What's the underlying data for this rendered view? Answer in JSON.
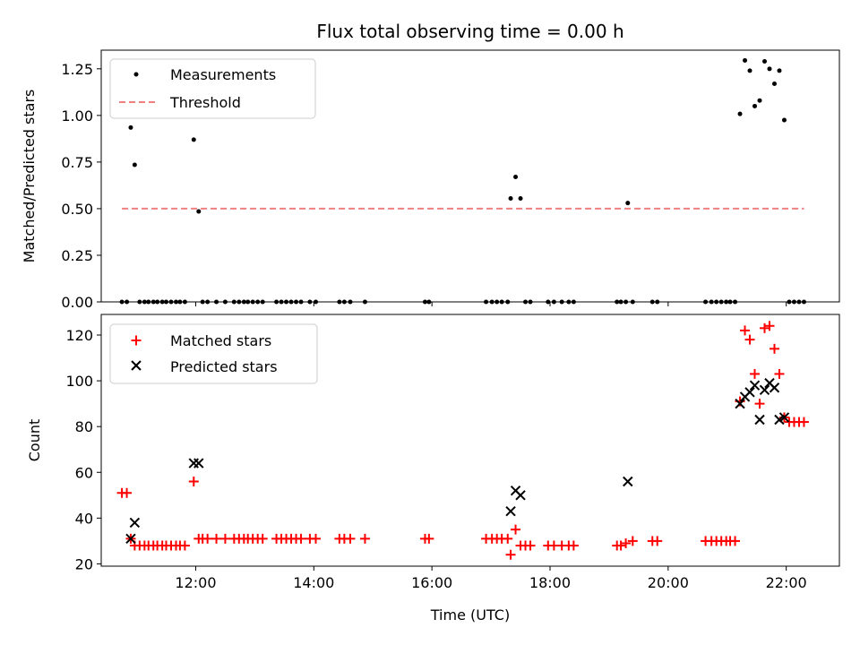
{
  "chart_data": [
    {
      "type": "scatter",
      "title": "Flux total observing time = 0.00 h",
      "xlabel": "",
      "ylabel": "Matched/Predicted stars",
      "xlim": [
        "10:24",
        "22:54"
      ],
      "ylim": [
        0,
        1.35
      ],
      "yticks": [
        "0.00",
        "0.25",
        "0.50",
        "0.75",
        "1.00",
        "1.25"
      ],
      "legend_position": "top-left",
      "series": [
        {
          "name": "Measurements",
          "marker": "dot",
          "color": "#000000",
          "points": [
            [
              "10:45",
              0
            ],
            [
              "10:50",
              0
            ],
            [
              "10:54",
              0.935
            ],
            [
              "10:58",
              0.735
            ],
            [
              "11:03",
              0
            ],
            [
              "11:08",
              0
            ],
            [
              "11:12",
              0
            ],
            [
              "11:17",
              0
            ],
            [
              "11:21",
              0
            ],
            [
              "11:26",
              0
            ],
            [
              "11:30",
              0
            ],
            [
              "11:35",
              0
            ],
            [
              "11:40",
              0
            ],
            [
              "11:44",
              0
            ],
            [
              "11:49",
              0
            ],
            [
              "11:58",
              0.87
            ],
            [
              "12:03",
              0.485
            ],
            [
              "12:07",
              0
            ],
            [
              "12:12",
              0
            ],
            [
              "12:21",
              0
            ],
            [
              "12:30",
              0
            ],
            [
              "12:39",
              0
            ],
            [
              "12:44",
              0
            ],
            [
              "12:49",
              0
            ],
            [
              "12:53",
              0
            ],
            [
              "12:58",
              0
            ],
            [
              "13:03",
              0
            ],
            [
              "13:08",
              0
            ],
            [
              "13:22",
              0
            ],
            [
              "13:27",
              0
            ],
            [
              "13:32",
              0
            ],
            [
              "13:37",
              0
            ],
            [
              "13:42",
              0
            ],
            [
              "13:47",
              0
            ],
            [
              "13:56",
              0
            ],
            [
              "14:02",
              0
            ],
            [
              "14:26",
              0
            ],
            [
              "14:31",
              0
            ],
            [
              "14:37",
              0
            ],
            [
              "14:52",
              0
            ],
            [
              "15:53",
              0
            ],
            [
              "15:57",
              0
            ],
            [
              "16:55",
              0
            ],
            [
              "17:01",
              0
            ],
            [
              "17:06",
              0
            ],
            [
              "17:11",
              0
            ],
            [
              "17:17",
              0
            ],
            [
              "17:20",
              0.555
            ],
            [
              "17:25",
              0.67
            ],
            [
              "17:30",
              0.555
            ],
            [
              "17:35",
              0
            ],
            [
              "17:40",
              0
            ],
            [
              "17:58",
              0
            ],
            [
              "18:04",
              0
            ],
            [
              "18:12",
              0
            ],
            [
              "18:19",
              0
            ],
            [
              "18:24",
              0
            ],
            [
              "19:08",
              0
            ],
            [
              "19:12",
              0
            ],
            [
              "19:17",
              0
            ],
            [
              "19:19",
              0.53
            ],
            [
              "19:24",
              0
            ],
            [
              "19:44",
              0
            ],
            [
              "19:49",
              0
            ],
            [
              "20:38",
              0
            ],
            [
              "20:44",
              0
            ],
            [
              "20:49",
              0
            ],
            [
              "20:54",
              0
            ],
            [
              "20:59",
              0
            ],
            [
              "21:03",
              0
            ],
            [
              "21:08",
              0
            ],
            [
              "21:13",
              1.008
            ],
            [
              "21:18",
              1.295
            ],
            [
              "21:23",
              1.24
            ],
            [
              "21:28",
              1.05
            ],
            [
              "21:33",
              1.08
            ],
            [
              "21:38",
              1.29
            ],
            [
              "21:43",
              1.25
            ],
            [
              "21:48",
              1.17
            ],
            [
              "21:53",
              1.24
            ],
            [
              "21:58",
              0.975
            ],
            [
              "22:03",
              0
            ],
            [
              "22:08",
              0
            ],
            [
              "22:13",
              0
            ],
            [
              "22:18",
              0
            ]
          ]
        },
        {
          "name": "Threshold",
          "marker": "dashed-line",
          "color": "#f08080",
          "points": [
            [
              "10:45",
              0.5
            ],
            [
              "22:18",
              0.5
            ]
          ]
        }
      ]
    },
    {
      "type": "scatter",
      "title": "",
      "xlabel": "Time (UTC)",
      "ylabel": "Count",
      "xlim": [
        "10:24",
        "22:54"
      ],
      "ylim": [
        19,
        129
      ],
      "yticks": [
        "20",
        "40",
        "60",
        "80",
        "100",
        "120"
      ],
      "xticks": [
        "12:00",
        "14:00",
        "16:00",
        "18:00",
        "20:00",
        "22:00"
      ],
      "legend_position": "top-left",
      "series": [
        {
          "name": "Matched stars",
          "marker": "plus",
          "color": "#ff0000",
          "points": [
            [
              "10:45",
              51
            ],
            [
              "10:50",
              51
            ],
            [
              "10:54",
              31
            ],
            [
              "10:58",
              28
            ],
            [
              "11:03",
              28
            ],
            [
              "11:08",
              28
            ],
            [
              "11:12",
              28
            ],
            [
              "11:17",
              28
            ],
            [
              "11:21",
              28
            ],
            [
              "11:26",
              28
            ],
            [
              "11:30",
              28
            ],
            [
              "11:35",
              28
            ],
            [
              "11:40",
              28
            ],
            [
              "11:44",
              28
            ],
            [
              "11:49",
              28
            ],
            [
              "11:58",
              56
            ],
            [
              "12:03",
              31
            ],
            [
              "12:07",
              31
            ],
            [
              "12:12",
              31
            ],
            [
              "12:21",
              31
            ],
            [
              "12:30",
              31
            ],
            [
              "12:39",
              31
            ],
            [
              "12:44",
              31
            ],
            [
              "12:49",
              31
            ],
            [
              "12:53",
              31
            ],
            [
              "12:58",
              31
            ],
            [
              "13:03",
              31
            ],
            [
              "13:08",
              31
            ],
            [
              "13:22",
              31
            ],
            [
              "13:27",
              31
            ],
            [
              "13:32",
              31
            ],
            [
              "13:37",
              31
            ],
            [
              "13:42",
              31
            ],
            [
              "13:47",
              31
            ],
            [
              "13:56",
              31
            ],
            [
              "14:02",
              31
            ],
            [
              "14:26",
              31
            ],
            [
              "14:31",
              31
            ],
            [
              "14:37",
              31
            ],
            [
              "14:52",
              31
            ],
            [
              "15:53",
              31
            ],
            [
              "15:57",
              31
            ],
            [
              "16:55",
              31
            ],
            [
              "17:01",
              31
            ],
            [
              "17:06",
              31
            ],
            [
              "17:11",
              31
            ],
            [
              "17:17",
              31
            ],
            [
              "17:20",
              24
            ],
            [
              "17:25",
              35
            ],
            [
              "17:30",
              28
            ],
            [
              "17:35",
              28
            ],
            [
              "17:40",
              28
            ],
            [
              "17:58",
              28
            ],
            [
              "18:04",
              28
            ],
            [
              "18:12",
              28
            ],
            [
              "18:19",
              28
            ],
            [
              "18:24",
              28
            ],
            [
              "19:08",
              28
            ],
            [
              "19:12",
              28
            ],
            [
              "19:17",
              29
            ],
            [
              "19:24",
              30
            ],
            [
              "19:44",
              30
            ],
            [
              "19:49",
              30
            ],
            [
              "20:38",
              30
            ],
            [
              "20:44",
              30
            ],
            [
              "20:49",
              30
            ],
            [
              "20:54",
              30
            ],
            [
              "20:59",
              30
            ],
            [
              "21:03",
              30
            ],
            [
              "21:08",
              30
            ],
            [
              "21:13",
              91
            ],
            [
              "21:18",
              122
            ],
            [
              "21:23",
              118
            ],
            [
              "21:28",
              103
            ],
            [
              "21:33",
              90
            ],
            [
              "21:38",
              123
            ],
            [
              "21:43",
              124
            ],
            [
              "21:48",
              114
            ],
            [
              "21:53",
              103
            ],
            [
              "21:58",
              84
            ],
            [
              "22:03",
              82
            ],
            [
              "22:08",
              82
            ],
            [
              "22:13",
              82
            ],
            [
              "22:18",
              82
            ]
          ]
        },
        {
          "name": "Predicted stars",
          "marker": "x",
          "color": "#000000",
          "points": [
            [
              "10:54",
              31
            ],
            [
              "10:58",
              38
            ],
            [
              "11:58",
              64
            ],
            [
              "12:03",
              64
            ],
            [
              "17:20",
              43
            ],
            [
              "17:25",
              52
            ],
            [
              "17:30",
              50
            ],
            [
              "19:19",
              56
            ],
            [
              "21:13",
              90
            ],
            [
              "21:18",
              93
            ],
            [
              "21:23",
              95
            ],
            [
              "21:28",
              98
            ],
            [
              "21:33",
              83
            ],
            [
              "21:38",
              96
            ],
            [
              "21:43",
              99
            ],
            [
              "21:48",
              97
            ],
            [
              "21:53",
              83
            ],
            [
              "21:58",
              84
            ]
          ]
        }
      ]
    }
  ]
}
